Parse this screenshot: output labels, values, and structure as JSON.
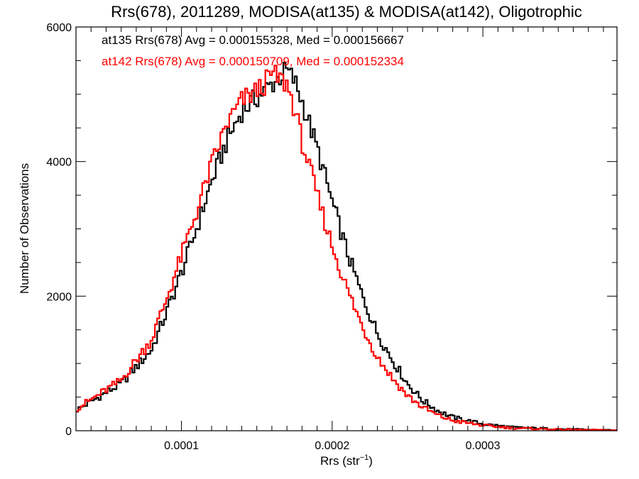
{
  "chart_data": {
    "type": "histogram",
    "title": "Rrs(678), 2011289, MODISA(at135) & MODISA(at142), Oligotrophic",
    "xlabel_base": "Rrs (str",
    "xlabel_sup": "−1",
    "xlabel_close": ")",
    "ylabel": "Number of Observations",
    "xlim": [
      3e-05,
      0.000389
    ],
    "ylim": [
      0,
      6000
    ],
    "x_ticks": [
      0.0001,
      0.0002,
      0.0003
    ],
    "x_tick_labels": [
      "0.0001",
      "0.0002",
      "0.0003"
    ],
    "y_ticks": [
      0,
      2000,
      4000,
      6000
    ],
    "y_tick_labels": [
      "0",
      "2000",
      "4000",
      "6000"
    ],
    "grid": false,
    "bin_count": 240,
    "annotations": [
      {
        "text": "at135 Rrs(678) Avg = 0.000155328, Med = 0.000156667",
        "color": "#000000"
      },
      {
        "text": "at142 Rrs(678) Avg = 0.000150709, Med = 0.000152334",
        "color": "#ff0000"
      }
    ],
    "series": [
      {
        "color": "#000000",
        "x": [
          3e-05,
          6e-05,
          8e-05,
          9e-05,
          0.0001,
          0.00011,
          0.00012,
          0.00013,
          0.00014,
          0.00015,
          0.000155,
          0.000165,
          0.00017,
          0.000175,
          0.00018,
          0.00019,
          0.0002,
          0.00021,
          0.00022,
          0.00023,
          0.00024,
          0.00025,
          0.00026,
          0.00027,
          0.00028,
          0.0003,
          0.00032,
          0.00035,
          0.000389
        ],
        "values": [
          300,
          700,
          1200,
          1750,
          2350,
          3000,
          3700,
          4300,
          4750,
          4950,
          5050,
          5250,
          5350,
          5200,
          4900,
          4200,
          3400,
          2650,
          2000,
          1450,
          1050,
          700,
          450,
          300,
          200,
          100,
          50,
          25,
          8
        ]
      },
      {
        "color": "#ff0000",
        "x": [
          3e-05,
          6e-05,
          8e-05,
          9e-05,
          0.0001,
          0.00011,
          0.00012,
          0.00013,
          0.00014,
          0.00015,
          0.000155,
          0.00016,
          0.00017,
          0.000175,
          0.00018,
          0.00019,
          0.0002,
          0.00021,
          0.00022,
          0.00023,
          0.00024,
          0.00025,
          0.00026,
          0.00027,
          0.00028,
          0.0003,
          0.00032,
          0.00035,
          0.000389
        ],
        "values": [
          320,
          750,
          1350,
          1950,
          2600,
          3250,
          3950,
          4550,
          4900,
          5050,
          5150,
          5300,
          5150,
          4800,
          4300,
          3500,
          2750,
          2100,
          1550,
          1100,
          780,
          520,
          350,
          230,
          150,
          80,
          40,
          20,
          6
        ]
      }
    ]
  }
}
